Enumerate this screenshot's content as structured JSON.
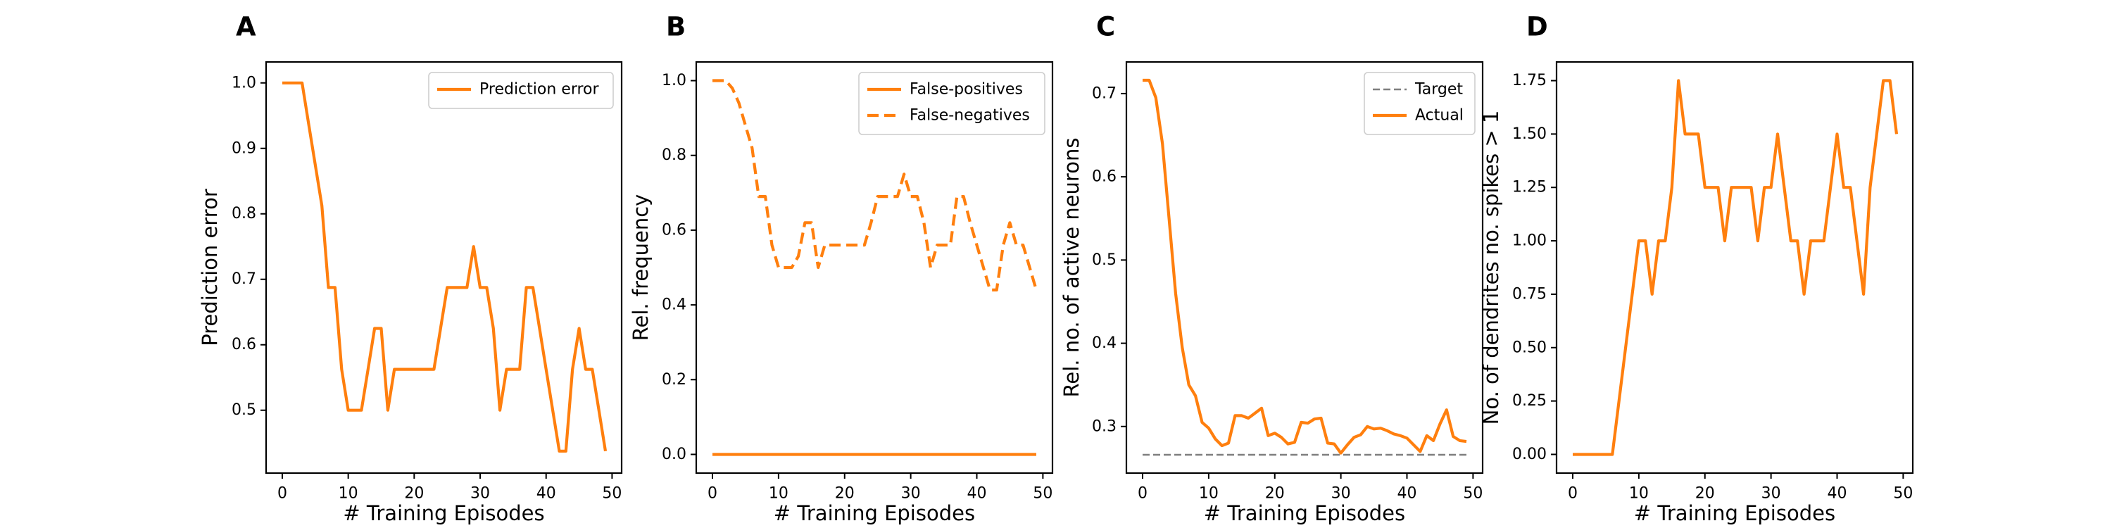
{
  "figure": {
    "panels": [
      {
        "letter": "A",
        "xlabel": "# Training Episodes",
        "ylabel": "Prediction error"
      },
      {
        "letter": "B",
        "xlabel": "# Training Episodes",
        "ylabel": "Rel. frequency"
      },
      {
        "letter": "C",
        "xlabel": "# Training Episodes",
        "ylabel": "Rel. no. of active neurons"
      },
      {
        "letter": "D",
        "xlabel": "# Training Episodes",
        "ylabel": "No. of dendrites no. spikes > 1"
      }
    ]
  },
  "colors": {
    "orange": "#ff7f0e",
    "gray": "#7f7f7f"
  },
  "chart_data": [
    {
      "type": "line",
      "title": "",
      "panel_label": "A",
      "xlabel": "# Training Episodes",
      "ylabel": "Prediction error",
      "xlim": [
        -2.45,
        51.45
      ],
      "ylim": [
        0.404,
        1.032
      ],
      "xticks": [
        0,
        10,
        20,
        30,
        40,
        50
      ],
      "yticks": [
        0.5,
        0.6,
        0.7,
        0.8,
        0.9,
        1.0
      ],
      "ytick_labels": [
        "0.5",
        "0.6",
        "0.7",
        "0.8",
        "0.9",
        "1.0"
      ],
      "legend_position": "upper right",
      "series": [
        {
          "name": "Prediction error",
          "style": "solid",
          "color": "#ff7f0e",
          "x": [
            0,
            1,
            2,
            3,
            4,
            5,
            6,
            7,
            8,
            9,
            10,
            11,
            12,
            13,
            14,
            15,
            16,
            17,
            18,
            19,
            20,
            21,
            22,
            23,
            24,
            25,
            26,
            27,
            28,
            29,
            30,
            31,
            32,
            33,
            34,
            35,
            36,
            37,
            38,
            39,
            40,
            41,
            42,
            43,
            44,
            45,
            46,
            47,
            48,
            49
          ],
          "y": [
            1.0,
            1.0,
            1.0,
            1.0,
            0.9375,
            0.875,
            0.8125,
            0.6875,
            0.6875,
            0.5625,
            0.5,
            0.5,
            0.5,
            0.5625,
            0.625,
            0.625,
            0.5,
            0.5625,
            0.5625,
            0.5625,
            0.5625,
            0.5625,
            0.5625,
            0.5625,
            0.625,
            0.6875,
            0.6875,
            0.6875,
            0.6875,
            0.75,
            0.6875,
            0.6875,
            0.625,
            0.5,
            0.5625,
            0.5625,
            0.5625,
            0.6875,
            0.6875,
            0.625,
            0.5625,
            0.5,
            0.4375,
            0.4375,
            0.5625,
            0.625,
            0.5625,
            0.5625,
            0.5,
            0.4375
          ]
        }
      ]
    },
    {
      "type": "line",
      "title": "",
      "panel_label": "B",
      "xlabel": "# Training Episodes",
      "ylabel": "Rel. frequency",
      "xlim": [
        -2.45,
        51.45
      ],
      "ylim": [
        -0.05,
        1.05
      ],
      "xticks": [
        0,
        10,
        20,
        30,
        40,
        50
      ],
      "yticks": [
        0.0,
        0.2,
        0.4,
        0.6,
        0.8,
        1.0
      ],
      "ytick_labels": [
        "0.0",
        "0.2",
        "0.4",
        "0.6",
        "0.8",
        "1.0"
      ],
      "legend_position": "upper right",
      "series": [
        {
          "name": "False-positives",
          "style": "solid",
          "color": "#ff7f0e",
          "x": [
            0,
            1,
            2,
            3,
            4,
            5,
            6,
            7,
            8,
            9,
            10,
            11,
            12,
            13,
            14,
            15,
            16,
            17,
            18,
            19,
            20,
            21,
            22,
            23,
            24,
            25,
            26,
            27,
            28,
            29,
            30,
            31,
            32,
            33,
            34,
            35,
            36,
            37,
            38,
            39,
            40,
            41,
            42,
            43,
            44,
            45,
            46,
            47,
            48,
            49
          ],
          "y": [
            0,
            0,
            0,
            0,
            0,
            0,
            0,
            0,
            0,
            0,
            0,
            0,
            0,
            0,
            0,
            0,
            0,
            0,
            0,
            0,
            0,
            0,
            0,
            0,
            0,
            0,
            0,
            0,
            0,
            0,
            0,
            0,
            0,
            0,
            0,
            0,
            0,
            0,
            0,
            0,
            0,
            0,
            0,
            0,
            0,
            0,
            0,
            0,
            0,
            0
          ]
        },
        {
          "name": "False-negatives",
          "style": "dashed",
          "color": "#ff7f0e",
          "x": [
            0,
            1,
            2,
            3,
            4,
            5,
            6,
            7,
            8,
            9,
            10,
            11,
            12,
            13,
            14,
            15,
            16,
            17,
            18,
            19,
            20,
            21,
            22,
            23,
            24,
            25,
            26,
            27,
            28,
            29,
            30,
            31,
            32,
            33,
            34,
            35,
            36,
            37,
            38,
            39,
            40,
            41,
            42,
            43,
            44,
            45,
            46,
            47,
            48,
            49
          ],
          "y": [
            1.0,
            1.0,
            1.0,
            0.98,
            0.94,
            0.88,
            0.82,
            0.69,
            0.69,
            0.56,
            0.5,
            0.5,
            0.5,
            0.53,
            0.62,
            0.62,
            0.5,
            0.56,
            0.56,
            0.56,
            0.56,
            0.56,
            0.56,
            0.56,
            0.62,
            0.69,
            0.69,
            0.69,
            0.69,
            0.75,
            0.69,
            0.69,
            0.62,
            0.5,
            0.56,
            0.56,
            0.56,
            0.69,
            0.69,
            0.62,
            0.56,
            0.5,
            0.44,
            0.44,
            0.56,
            0.62,
            0.56,
            0.56,
            0.5,
            0.44
          ]
        }
      ]
    },
    {
      "type": "line",
      "title": "",
      "panel_label": "C",
      "xlabel": "# Training Episodes",
      "ylabel": "Rel. no. of active neurons",
      "xlim": [
        -2.45,
        51.45
      ],
      "ylim": [
        0.244,
        0.738
      ],
      "xticks": [
        0,
        10,
        20,
        30,
        40,
        50
      ],
      "yticks": [
        0.3,
        0.4,
        0.5,
        0.6,
        0.7
      ],
      "ytick_labels": [
        "0.3",
        "0.4",
        "0.5",
        "0.6",
        "0.7"
      ],
      "legend_position": "upper right",
      "series": [
        {
          "name": "Target",
          "style": "dashed",
          "color": "#7f7f7f",
          "x": [
            0,
            49
          ],
          "y": [
            0.266,
            0.266
          ]
        },
        {
          "name": "Actual",
          "style": "solid",
          "color": "#ff7f0e",
          "x": [
            0,
            1,
            2,
            3,
            4,
            5,
            6,
            7,
            8,
            9,
            10,
            11,
            12,
            13,
            14,
            15,
            16,
            17,
            18,
            19,
            20,
            21,
            22,
            23,
            24,
            25,
            26,
            27,
            28,
            29,
            30,
            31,
            32,
            33,
            34,
            35,
            36,
            37,
            38,
            39,
            40,
            41,
            42,
            43,
            44,
            45,
            46,
            47,
            48,
            49
          ],
          "y": [
            0.716,
            0.716,
            0.695,
            0.64,
            0.55,
            0.46,
            0.395,
            0.35,
            0.337,
            0.305,
            0.298,
            0.285,
            0.277,
            0.28,
            0.313,
            0.313,
            0.31,
            0.316,
            0.322,
            0.289,
            0.292,
            0.287,
            0.279,
            0.281,
            0.305,
            0.304,
            0.309,
            0.31,
            0.28,
            0.279,
            0.268,
            0.278,
            0.287,
            0.29,
            0.3,
            0.297,
            0.298,
            0.295,
            0.291,
            0.289,
            0.286,
            0.278,
            0.27,
            0.289,
            0.283,
            0.303,
            0.32,
            0.288,
            0.283,
            0.282
          ]
        }
      ]
    },
    {
      "type": "line",
      "title": "",
      "panel_label": "D",
      "xlabel": "# Training Episodes",
      "ylabel": "No. of dendrites no. spikes > 1",
      "xlim": [
        -2.45,
        51.45
      ],
      "ylim": [
        -0.0875,
        1.8375
      ],
      "xticks": [
        0,
        10,
        20,
        30,
        40,
        50
      ],
      "yticks": [
        0.0,
        0.25,
        0.5,
        0.75,
        1.0,
        1.25,
        1.5,
        1.75
      ],
      "ytick_labels": [
        "0.00",
        "0.25",
        "0.50",
        "0.75",
        "1.00",
        "1.25",
        "1.50",
        "1.75"
      ],
      "legend_position": "none",
      "series": [
        {
          "name": "",
          "style": "solid",
          "color": "#ff7f0e",
          "x": [
            0,
            1,
            2,
            3,
            4,
            5,
            6,
            7,
            8,
            9,
            10,
            11,
            12,
            13,
            14,
            15,
            16,
            17,
            18,
            19,
            20,
            21,
            22,
            23,
            24,
            25,
            26,
            27,
            28,
            29,
            30,
            31,
            32,
            33,
            34,
            35,
            36,
            37,
            38,
            39,
            40,
            41,
            42,
            43,
            44,
            45,
            46,
            47,
            48,
            49
          ],
          "y": [
            0,
            0,
            0,
            0,
            0,
            0,
            0,
            0.25,
            0.5,
            0.75,
            1.0,
            1.0,
            0.75,
            1.0,
            1.0,
            1.25,
            1.75,
            1.5,
            1.5,
            1.5,
            1.25,
            1.25,
            1.25,
            1.0,
            1.25,
            1.25,
            1.25,
            1.25,
            1.0,
            1.25,
            1.25,
            1.5,
            1.25,
            1.0,
            1.0,
            0.75,
            1.0,
            1.0,
            1.0,
            1.25,
            1.5,
            1.25,
            1.25,
            1.0,
            0.75,
            1.25,
            1.5,
            1.75,
            1.75,
            1.5
          ]
        }
      ]
    }
  ]
}
